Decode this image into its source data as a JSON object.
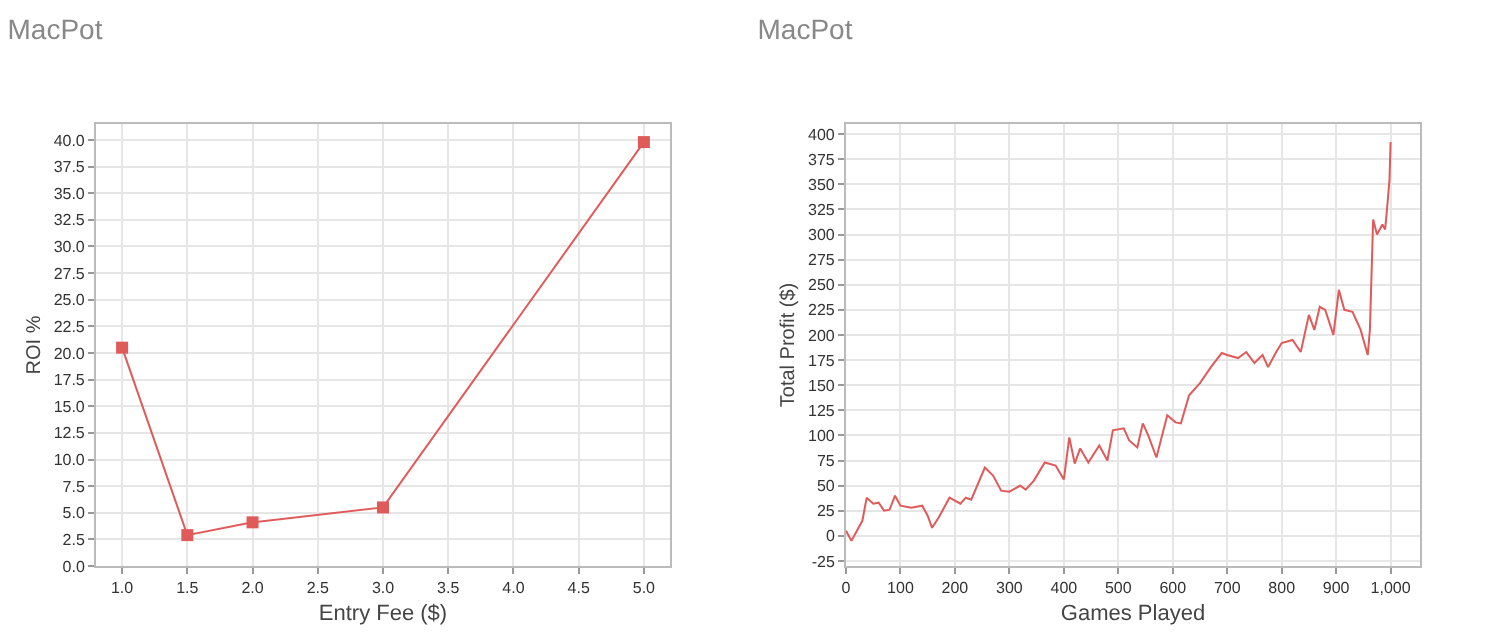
{
  "chart_data": [
    {
      "type": "line",
      "title": "MacPot",
      "xlabel": "Entry Fee ($)",
      "ylabel": "ROI %",
      "marker": "square",
      "grid": true,
      "x": [
        1.0,
        1.5,
        2.0,
        3.0,
        5.0
      ],
      "series": [
        {
          "color": "#e05a5a",
          "values": [
            20.5,
            2.9,
            4.1,
            5.5,
            39.8
          ]
        }
      ],
      "xlim": [
        0.8,
        5.2
      ],
      "xticks": [
        {
          "value": 1,
          "label": "1.0"
        },
        1.5,
        {
          "value": 2,
          "label": "2.0"
        },
        2.5,
        {
          "value": 3,
          "label": "3.0"
        },
        3.5,
        {
          "value": 4,
          "label": "4.0"
        },
        4.5,
        {
          "value": 5,
          "label": "5.0"
        }
      ],
      "ylim": [
        0,
        41.5
      ],
      "yticks": [
        {
          "value": 0,
          "label": "0.0"
        },
        2.5,
        {
          "value": 5,
          "label": "5.0"
        },
        7.5,
        {
          "value": 10,
          "label": "10.0"
        },
        12.5,
        {
          "value": 15,
          "label": "15.0"
        },
        17.5,
        {
          "value": 20,
          "label": "20.0"
        },
        22.5,
        {
          "value": 25,
          "label": "25.0"
        },
        27.5,
        {
          "value": 30,
          "label": "30.0"
        },
        32.5,
        {
          "value": 35,
          "label": "35.0"
        },
        37.5,
        {
          "value": 40,
          "label": "40.0"
        }
      ]
    },
    {
      "type": "line",
      "title": "MacPot",
      "xlabel": "Games Played",
      "ylabel": "Total Profit ($)",
      "marker": "none",
      "grid": true,
      "x": [
        0,
        10,
        20,
        30,
        38,
        50,
        60,
        70,
        80,
        90,
        100,
        120,
        140,
        150,
        158,
        170,
        190,
        210,
        220,
        230,
        255,
        270,
        285,
        300,
        320,
        330,
        345,
        365,
        385,
        400,
        410,
        420,
        430,
        445,
        465,
        480,
        490,
        510,
        520,
        535,
        545,
        555,
        570,
        590,
        605,
        615,
        630,
        650,
        670,
        690,
        700,
        720,
        735,
        750,
        765,
        775,
        790,
        800,
        820,
        835,
        850,
        860,
        870,
        880,
        895,
        905,
        915,
        930,
        945,
        958,
        962,
        968,
        975,
        985,
        990,
        995,
        998,
        1000
      ],
      "series": [
        {
          "color": "#e05a5a",
          "values": [
            5,
            -5,
            5,
            15,
            38,
            32,
            33,
            25,
            26,
            40,
            30,
            28,
            30,
            20,
            8,
            18,
            38,
            32,
            38,
            36,
            68,
            60,
            45,
            44,
            50,
            46,
            55,
            73,
            70,
            56,
            98,
            72,
            87,
            73,
            90,
            75,
            105,
            107,
            95,
            88,
            112,
            100,
            78,
            120,
            113,
            112,
            140,
            152,
            168,
            182,
            180,
            177,
            183,
            172,
            180,
            168,
            183,
            192,
            195,
            183,
            220,
            205,
            228,
            225,
            200,
            245,
            225,
            223,
            205,
            180,
            205,
            315,
            300,
            310,
            305,
            335,
            355,
            392
          ]
        }
      ],
      "xlim": [
        0,
        1054
      ],
      "xticks": [
        0,
        100,
        200,
        300,
        400,
        500,
        600,
        700,
        800,
        900,
        {
          "value": 1000,
          "label": "1,000"
        }
      ],
      "ylim": [
        -30,
        410
      ],
      "yticks": [
        -25,
        0,
        25,
        50,
        75,
        100,
        125,
        150,
        175,
        200,
        225,
        250,
        275,
        300,
        325,
        350,
        375,
        400
      ]
    }
  ]
}
